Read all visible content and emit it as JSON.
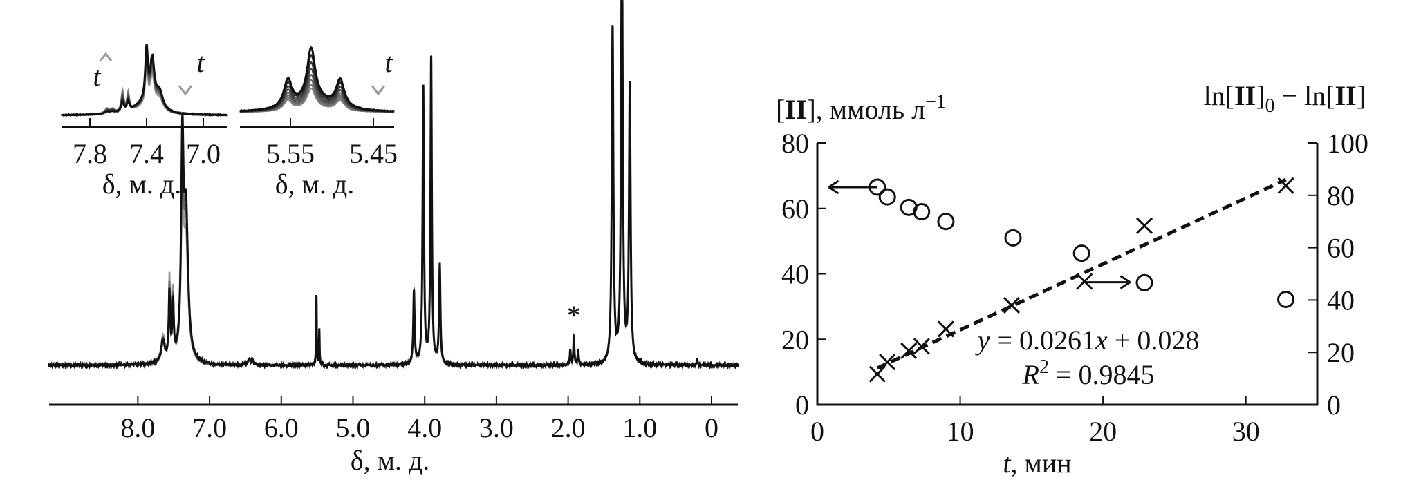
{
  "chart_data": [
    {
      "type": "line",
      "panel": "nmr-spectrum",
      "xlabel": "δ, м. д.",
      "x_ticks": [
        "8.0",
        "7.0",
        "6.0",
        "5.0",
        "4.0",
        "3.0",
        "2.0",
        "1.0",
        "0"
      ],
      "x_tick_values": [
        8,
        7,
        6,
        5,
        4,
        3,
        2,
        1,
        0
      ],
      "xlim": [
        9.24,
        -0.37
      ],
      "annotation": "*",
      "annotation_ppm": 1.92,
      "peaks_ppm_intensity_width": [
        [
          7.65,
          6,
          0.03
        ],
        [
          7.56,
          18,
          0.012
        ],
        [
          7.51,
          15,
          0.012
        ],
        [
          7.38,
          55,
          0.02
        ],
        [
          7.33,
          40,
          0.035
        ],
        [
          6.45,
          1.5,
          0.02
        ],
        [
          6.4,
          1.2,
          0.02
        ],
        [
          5.51,
          19,
          0.005
        ],
        [
          5.47,
          10,
          0.005
        ],
        [
          4.15,
          20,
          0.011
        ],
        [
          4.02,
          76,
          0.011
        ],
        [
          3.91,
          84,
          0.011
        ],
        [
          3.79,
          27,
          0.011
        ],
        [
          1.97,
          4,
          0.008
        ],
        [
          1.92,
          8,
          0.008
        ],
        [
          1.86,
          4,
          0.008
        ],
        [
          1.38,
          92,
          0.013
        ],
        [
          1.25,
          125,
          0.013
        ],
        [
          1.14,
          76,
          0.013
        ],
        [
          0.2,
          1.5,
          0.01
        ]
      ]
    },
    {
      "type": "line",
      "panel": "inset-aromatic",
      "xlabel": "δ, м. д.",
      "x_ticks": [
        "7.8",
        "7.4",
        "7.0"
      ],
      "x_tick_values": [
        7.8,
        7.4,
        7.0
      ],
      "xlim": [
        8.0,
        6.83
      ],
      "arrow_up_label": "t",
      "arrow_down_label": "t",
      "growing_peaks": [
        [
          7.68,
          7,
          0.02
        ],
        [
          7.64,
          6,
          0.02
        ],
        [
          7.57,
          30,
          0.011
        ],
        [
          7.53,
          27,
          0.011
        ]
      ],
      "decaying_peaks": [
        [
          7.4,
          72,
          0.011
        ],
        [
          7.36,
          62,
          0.018
        ],
        [
          7.31,
          25,
          0.03
        ],
        [
          7.42,
          14,
          0.09
        ]
      ],
      "trace_scales_decaying": [
        1.0,
        0.95,
        0.9,
        0.85,
        0.8,
        0.75,
        0.68
      ],
      "trace_scales_growing": [
        0.45,
        0.55,
        0.65,
        0.75,
        0.85,
        0.92,
        1.0
      ]
    },
    {
      "type": "line",
      "panel": "inset-5.5ppm",
      "xlabel": "δ, м. д.",
      "x_ticks": [
        "5.55",
        "5.45"
      ],
      "x_tick_values": [
        5.55,
        5.45
      ],
      "xlim": [
        5.611,
        5.425
      ],
      "arrow_down_label": "t",
      "decaying_peaks": [
        [
          5.553,
          40,
          0.006
        ],
        [
          5.525,
          78,
          0.006
        ],
        [
          5.49,
          40,
          0.006
        ],
        [
          5.52,
          14,
          0.03
        ]
      ],
      "trace_scales_decaying": [
        1.0,
        0.88,
        0.77,
        0.67,
        0.58,
        0.5,
        0.43,
        0.37
      ]
    },
    {
      "type": "scatter",
      "panel": "kinetics",
      "xlabel_italic": "t",
      "xlabel_rest": ", мин",
      "xlim": [
        0,
        35
      ],
      "x_ticks": [
        "0",
        "10",
        "20",
        "30"
      ],
      "x_tick_values": [
        0,
        10,
        20,
        30
      ],
      "ylabel_left": {
        "open": "[",
        "bold": "II",
        "rest": "], ммоль л",
        "sup": "−1"
      },
      "ylim_left": [
        0,
        80
      ],
      "y_ticks_left": [
        "0",
        "20",
        "40",
        "60",
        "80"
      ],
      "y_tick_values_left": [
        0,
        20,
        40,
        60,
        80
      ],
      "ylabel_right": {
        "p1": "ln[",
        "b1": "II",
        "p2": "]",
        "sub": "0",
        "p3": " − ln[",
        "b2": "II",
        "p4": "]"
      },
      "ylim_right": [
        0,
        100
      ],
      "y_ticks_right": [
        "0",
        "20",
        "40",
        "60",
        "80",
        "100"
      ],
      "y_tick_values_right": [
        0,
        20,
        40,
        60,
        80,
        100
      ],
      "series": [
        {
          "marker": "circle",
          "axis": "left",
          "x": [
            4.2,
            4.9,
            6.4,
            7.3,
            9.0,
            13.7,
            18.5,
            22.9,
            32.8
          ],
          "y": [
            66.5,
            63.5,
            60.3,
            59.0,
            56.0,
            51.0,
            46.3,
            37.3,
            32.2
          ]
        },
        {
          "marker": "cross",
          "axis": "right",
          "x": [
            4.2,
            4.9,
            6.4,
            7.3,
            9.0,
            13.6,
            18.7,
            22.9,
            32.8
          ],
          "y": [
            11.7,
            16.3,
            20.6,
            22.3,
            28.9,
            38.0,
            47.1,
            68.4,
            83.7
          ]
        }
      ],
      "fit_line": {
        "style": "dashed",
        "x": [
          4.2,
          32.8
        ],
        "y": [
          14.0,
          86.0
        ]
      },
      "arrow_left": {
        "from": [
          4.2,
          66.5
        ],
        "to": [
          0.8,
          66.5
        ],
        "axis": "left"
      },
      "arrow_right": {
        "from": [
          18.7,
          46.8
        ],
        "to": [
          21.9,
          46.8
        ],
        "axis": "right"
      },
      "equation": {
        "y": "y",
        "eq1": " = 0.0261",
        "x": "x",
        "eq2": " + 0.028"
      },
      "r2": {
        "R": "R",
        "sup": "2",
        "rest": " = 0.9845"
      }
    }
  ]
}
